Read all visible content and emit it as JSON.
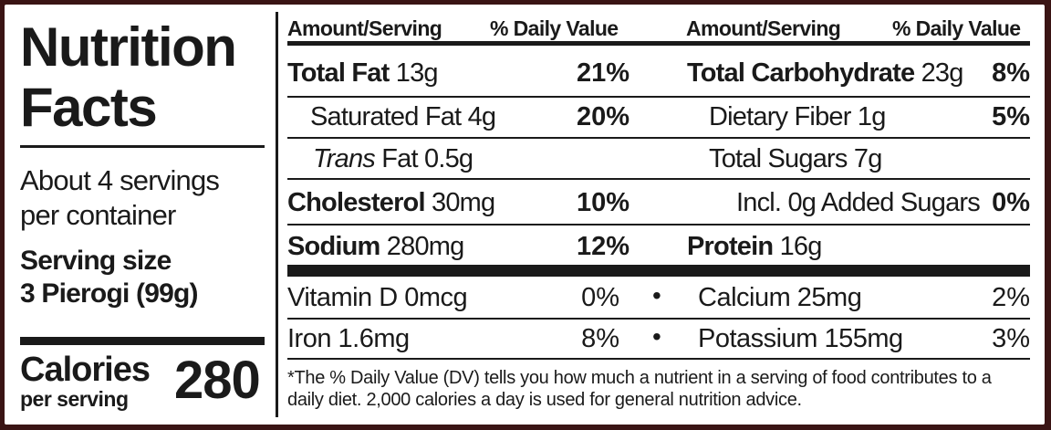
{
  "title_line1": "Nutrition",
  "title_line2": "Facts",
  "servings_line1": "About 4 servings",
  "servings_line2": "per container",
  "serving_size_label": "Serving size",
  "serving_size_value": "3 Pierogi (99g)",
  "calories_label": "Calories",
  "calories_sub": "per serving",
  "calories_value": "280",
  "headers": {
    "amount_left": "Amount/Serving",
    "dv_left": "% Daily Value",
    "amount_right": "Amount/Serving",
    "dv_right": "% Daily Value"
  },
  "left": {
    "total_fat": {
      "name": "Total Fat",
      "amount": "13g",
      "dv": "21%"
    },
    "sat_fat": {
      "name": "Saturated Fat",
      "amount": "4g",
      "dv": "20%"
    },
    "trans_fat": {
      "name": "Trans",
      "suffix": "Fat",
      "amount": "0.5g"
    },
    "cholesterol": {
      "name": "Cholesterol",
      "amount": "30mg",
      "dv": "10%"
    },
    "sodium": {
      "name": "Sodium",
      "amount": "280mg",
      "dv": "12%"
    }
  },
  "right": {
    "total_carb": {
      "name": "Total Carbohydrate",
      "amount": "23g",
      "dv": "8%"
    },
    "fiber": {
      "name": "Dietary Fiber",
      "amount": "1g",
      "dv": "5%"
    },
    "sugars": {
      "name": "Total Sugars",
      "amount": "7g"
    },
    "added_sugars": {
      "text": "Incl. 0g Added Sugars",
      "dv": "0%"
    },
    "protein": {
      "name": "Protein",
      "amount": "16g"
    }
  },
  "micros": {
    "vitamin_d": {
      "text": "Vitamin D 0mcg",
      "dv": "0%"
    },
    "calcium": {
      "text": "Calcium 25mg",
      "dv": "2%"
    },
    "iron": {
      "text": "Iron 1.6mg",
      "dv": "8%"
    },
    "potassium": {
      "text": "Potassium 155mg",
      "dv": "3%"
    },
    "bullet": "•"
  },
  "footnote": "*The % Daily Value (DV) tells you how much a nutrient in a serving of food contributes to a daily diet. 2,000 calories a day is used for general nutrition advice.",
  "colors": {
    "background": "#3a1414",
    "label": "#ffffff",
    "ink": "#1a1a1a"
  }
}
